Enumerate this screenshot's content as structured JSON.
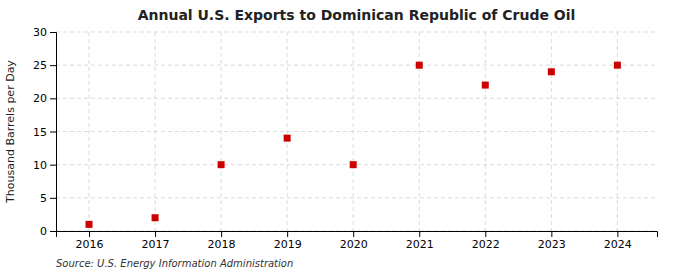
{
  "chart_data": {
    "type": "scatter",
    "title": "Annual U.S. Exports to Dominican Republic of Crude Oil",
    "ylabel": "Thousand Barrels per Day",
    "annotations": [
      "Source: U.S. Energy Information Administration"
    ],
    "x": [
      2016,
      2017,
      2018,
      2019,
      2020,
      2021,
      2022,
      2023,
      2024
    ],
    "values": [
      1,
      2,
      10,
      14,
      10,
      25,
      22,
      24,
      25
    ],
    "color": "#cc0000",
    "marker": "square",
    "xlim": [
      2015.5,
      2024.6
    ],
    "ylim": [
      0,
      30
    ],
    "xticks": [
      2016,
      2017,
      2018,
      2019,
      2020,
      2021,
      2022,
      2023,
      2024
    ],
    "yticks": [
      0,
      5,
      10,
      15,
      20,
      25,
      30
    ],
    "grid": true
  }
}
